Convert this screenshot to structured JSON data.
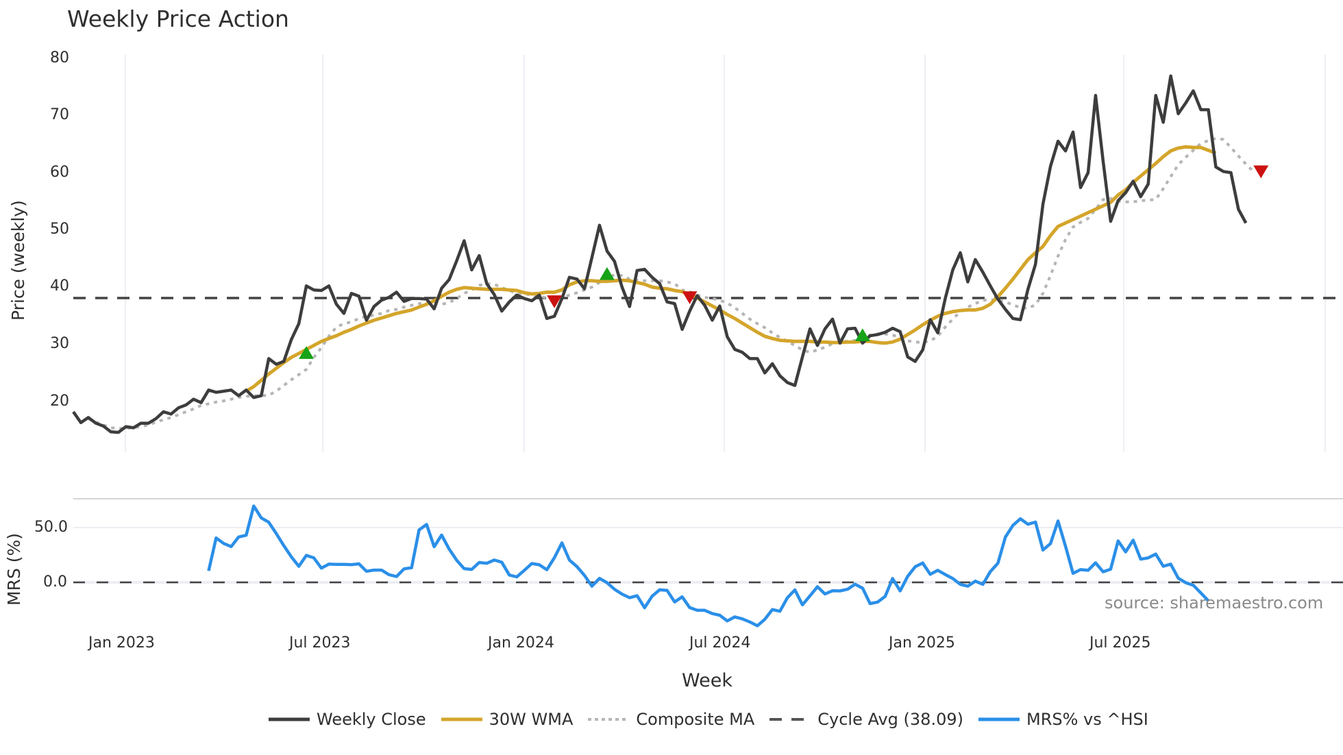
{
  "title": "Weekly Price Action",
  "source_note": "source: sharemaestro.com",
  "colors": {
    "weekly_close": "#3d3d3d",
    "wma": "#d4a52b",
    "composite_ma": "#b5b5b5",
    "cycle_avg": "#444444",
    "mrs": "#2b8fe8",
    "buy_marker": "#17a317",
    "sell_marker": "#cc1111",
    "grid": "#eceef3"
  },
  "legend": [
    {
      "label": "Weekly Close",
      "style": "solid",
      "color": "#3d3d3d"
    },
    {
      "label": "30W WMA",
      "style": "solid",
      "color": "#d4a52b"
    },
    {
      "label": "Composite MA",
      "style": "dotted",
      "color": "#b5b5b5"
    },
    {
      "label": "Cycle Avg (38.09)",
      "style": "dashed",
      "color": "#444444"
    },
    {
      "label": "MRS% vs ^HSI",
      "style": "solid",
      "color": "#2b8fe8"
    }
  ],
  "chart_data": [
    {
      "type": "line",
      "title": "Weekly Price Action",
      "xlabel": "Week",
      "ylabel": "Price (weekly)",
      "ylim": [
        12,
        80
      ],
      "yticks": [
        20,
        30,
        40,
        50,
        60,
        70,
        80
      ],
      "xticks": [
        "Jan 2023",
        "Jul 2023",
        "Jan 2024",
        "Jul 2024",
        "Jan 2025",
        "Jul 2025"
      ],
      "grid": true,
      "legend_position": "bottom",
      "x_start": "2022-12-05",
      "x_step": "1 week",
      "series": [
        {
          "name": "Weekly Close",
          "start_index": 0,
          "values": [
            18.2,
            16.3,
            17.2,
            16.2,
            15.7,
            14.7,
            14.6,
            15.6,
            15.4,
            16.2,
            16.2,
            17.0,
            18.2,
            17.8,
            18.9,
            19.4,
            20.4,
            19.8,
            22.0,
            21.6,
            21.8,
            22.0,
            21.0,
            22.0,
            20.7,
            21.0,
            27.5,
            26.5,
            27.0,
            30.8,
            33.6,
            40.2,
            39.5,
            39.4,
            40.2,
            37.0,
            35.4,
            38.9,
            38.4,
            34.2,
            36.6,
            37.7,
            38.2,
            39.1,
            37.5,
            38.0,
            38.0,
            37.9,
            36.2,
            39.8,
            41.3,
            44.6,
            48.1,
            43.0,
            45.5,
            40.6,
            38.7,
            35.8,
            37.4,
            38.6,
            38.0,
            37.6,
            38.6,
            34.5,
            34.9,
            38.0,
            41.7,
            41.4,
            39.7,
            45.2,
            50.8,
            46.3,
            44.5,
            40.0,
            36.6,
            42.9,
            43.1,
            41.7,
            40.6,
            37.4,
            37.1,
            32.6,
            35.8,
            38.5,
            36.8,
            34.2,
            36.7,
            31.3,
            29.1,
            28.6,
            27.5,
            27.5,
            25.0,
            26.6,
            24.5,
            23.3,
            22.8,
            27.8,
            32.7,
            29.8,
            32.7,
            34.4,
            30.2,
            32.7,
            32.8,
            30.2,
            31.5,
            31.7,
            32.1,
            32.8,
            32.2,
            27.8,
            27.0,
            29.0,
            34.3,
            32.0,
            38.0,
            43.0,
            46.0,
            40.9,
            44.8,
            42.6,
            40.2,
            37.9,
            36.1,
            34.5,
            34.3,
            39.6,
            44.0,
            54.5,
            61.1,
            65.5,
            63.8,
            67.1,
            57.4,
            60.0,
            73.5,
            62.0,
            51.5,
            55.1,
            56.5,
            58.5,
            55.8,
            58.0,
            73.5,
            68.8,
            76.9,
            70.3,
            72.2,
            74.3,
            71.0,
            71.0,
            61.0,
            60.2,
            60.0,
            53.6,
            51.2
          ]
        },
        {
          "name": "30W WMA",
          "start_index": 23,
          "values": [
            21.8,
            22.6,
            23.7,
            24.8,
            25.8,
            26.8,
            27.7,
            28.4,
            29.1,
            29.8,
            30.5,
            31.0,
            31.5,
            32.1,
            32.6,
            33.2,
            33.7,
            34.2,
            34.6,
            35.0,
            35.4,
            35.7,
            36.0,
            36.5,
            37.0,
            37.6,
            38.4,
            39.1,
            39.6,
            39.9,
            39.8,
            39.7,
            39.6,
            39.6,
            39.6,
            39.5,
            39.4,
            39.0,
            38.8,
            38.9,
            39.1,
            39.1,
            39.5,
            40.4,
            40.9,
            41.1,
            41.1,
            41.0,
            41.0,
            41.1,
            41.2,
            41.1,
            40.8,
            40.5,
            40.0,
            39.8,
            39.7,
            39.4,
            39.2,
            38.7,
            38.1,
            37.4,
            36.7,
            36.0,
            35.2,
            34.5,
            33.7,
            32.9,
            32.1,
            31.4,
            31.0,
            30.7,
            30.6,
            30.5,
            30.5,
            30.5,
            30.4,
            30.4,
            30.3,
            30.3,
            30.4,
            30.4,
            30.5,
            30.5,
            30.3,
            30.2,
            30.4,
            30.9,
            31.7,
            32.5,
            33.4,
            34.2,
            34.9,
            35.4,
            35.7,
            35.9,
            36.0,
            36.0,
            36.3,
            37.0,
            38.3,
            39.8,
            41.4,
            43.1,
            44.8,
            46.0,
            47.1,
            49.0,
            50.6,
            51.2,
            51.8,
            52.4,
            53.0,
            53.6,
            54.2,
            54.8,
            56.1,
            57.0,
            58.3,
            59.4,
            60.5,
            61.6,
            62.8,
            63.8,
            64.3,
            64.5,
            64.4,
            64.4,
            63.9,
            63.4
          ]
        },
        {
          "name": "Composite MA",
          "start_index": 2,
          "values": [
            17.0,
            16.4,
            15.9,
            15.4,
            15.3,
            15.3,
            15.4,
            15.6,
            15.9,
            16.4,
            16.8,
            17.2,
            17.7,
            18.2,
            18.7,
            19.3,
            19.6,
            19.9,
            20.1,
            20.4,
            20.7,
            20.9,
            21.0,
            21.0,
            21.1,
            21.8,
            22.8,
            23.8,
            24.7,
            25.6,
            27.7,
            29.4,
            31.4,
            33.0,
            33.6,
            33.9,
            34.5,
            34.9,
            35.1,
            35.4,
            35.9,
            36.1,
            36.5,
            36.8,
            37.1,
            37.2,
            37.2,
            37.0,
            37.3,
            38.0,
            38.9,
            39.5,
            40.3,
            40.6,
            40.5,
            39.9,
            39.4,
            38.9,
            38.8,
            38.6,
            38.4,
            38.1,
            38.0,
            38.1,
            38.6,
            39.0,
            39.5,
            40.0,
            40.8,
            41.8,
            42.1,
            42.0,
            41.4,
            41.2,
            41.1,
            41.1,
            41.1,
            40.9,
            40.6,
            39.5,
            39.2,
            38.6,
            38.2,
            38.0,
            37.7,
            37.2,
            36.4,
            35.4,
            34.4,
            33.6,
            32.9,
            32.0,
            31.2,
            30.5,
            29.8,
            29.0,
            28.6,
            29.0,
            29.5,
            30.1,
            30.5,
            30.5,
            30.7,
            31.1,
            31.6,
            31.8,
            31.8,
            31.6,
            31.2,
            30.6,
            30.4,
            30.3,
            30.6,
            31.4,
            33.0,
            34.4,
            35.7,
            36.5,
            37.1,
            37.7,
            37.8,
            37.7,
            37.4,
            36.9,
            36.4,
            36.3,
            36.9,
            38.9,
            42.0,
            45.4,
            48.3,
            50.5,
            51.3,
            52.0,
            53.6,
            55.3,
            55.5,
            55.0,
            54.9,
            54.9,
            55.1,
            55.2,
            55.3,
            57.2,
            59.3,
            61.4,
            62.7,
            63.9,
            65.1,
            65.6,
            66.0,
            65.8,
            64.4,
            62.9,
            61.5,
            60.2
          ]
        }
      ],
      "reference_lines": [
        {
          "name": "Cycle Avg (38.09)",
          "value": 38.09,
          "style": "dashed"
        }
      ],
      "markers": [
        {
          "type": "buy",
          "shape": "triangle-up",
          "index": 31,
          "value": 28.5
        },
        {
          "type": "sell",
          "shape": "triangle-down",
          "index": 64,
          "value": 37.5
        },
        {
          "type": "buy",
          "shape": "triangle-up",
          "index": 71,
          "value": 42.3
        },
        {
          "type": "sell",
          "shape": "triangle-down",
          "index": 82,
          "value": 38.2
        },
        {
          "type": "buy",
          "shape": "triangle-up",
          "index": 105,
          "value": 31.6
        },
        {
          "type": "sell",
          "shape": "triangle-down",
          "index": 158,
          "value": 60.2
        }
      ]
    },
    {
      "type": "line",
      "title": "",
      "xlabel": "Week",
      "ylabel": "MRS (%)",
      "ylim": [
        -42,
        77
      ],
      "yticks": [
        0.0,
        50.0
      ],
      "ytick_labels": [
        "0.0",
        "50.0"
      ],
      "grid": true,
      "reference_lines": [
        {
          "name": "zero",
          "value": 0.0,
          "style": "dashed"
        }
      ],
      "series": [
        {
          "name": "MRS% vs ^HSI",
          "start_index": 18,
          "values": [
            10.5,
            40.5,
            35.5,
            32.6,
            41.4,
            43.0,
            69.6,
            58.8,
            54.9,
            44.5,
            33.5,
            23.4,
            14.6,
            24.6,
            22.3,
            13.0,
            16.6,
            16.4,
            16.4,
            16.2,
            16.9,
            10.1,
            11.2,
            11.2,
            7.0,
            5.3,
            12.3,
            13.4,
            47.9,
            52.8,
            32.5,
            43.1,
            30.4,
            20.2,
            12.5,
            11.8,
            18.1,
            17.4,
            20.4,
            18.4,
            6.7,
            5.0,
            11.0,
            17.2,
            16.0,
            11.5,
            22.5,
            36.0,
            20.4,
            14.4,
            6.3,
            -3.5,
            3.6,
            -0.3,
            -6.3,
            -10.7,
            -14.0,
            -12.2,
            -23.2,
            -12.6,
            -6.8,
            -7.4,
            -17.9,
            -13.2,
            -23.0,
            -25.5,
            -25.5,
            -28.5,
            -30.0,
            -35.2,
            -31.5,
            -33.3,
            -36.1,
            -39.6,
            -33.7,
            -24.8,
            -26.4,
            -14.0,
            -6.9,
            -20.5,
            -12.3,
            -4.0,
            -10.6,
            -7.6,
            -7.8,
            -6.3,
            -1.7,
            -5.3,
            -19.4,
            -18.0,
            -12.8,
            3.5,
            -7.8,
            5.5,
            14.2,
            17.7,
            7.3,
            11.0,
            7.1,
            3.5,
            -1.8,
            -3.5,
            1.1,
            -1.8,
            9.8,
            17.4,
            41.3,
            52.0,
            58.0,
            53.0,
            55.0,
            29.5,
            35.4,
            56.0,
            33.0,
            8.2,
            11.6,
            11.0,
            17.8,
            9.6,
            12.0,
            37.8,
            27.8,
            38.5,
            21.2,
            22.3,
            25.8,
            14.7,
            16.6,
            3.8,
            -0.4,
            -2.6,
            -9.6,
            -16.8
          ]
        }
      ]
    }
  ],
  "axes": {
    "price_ylabel": "Price (weekly)",
    "mrs_ylabel": "MRS (%)",
    "xlabel": "Week",
    "price_yticks": [
      "80",
      "70",
      "60",
      "50",
      "40",
      "30",
      "20"
    ],
    "mrs_yticks": [
      "50.0",
      "0.0"
    ],
    "xticks": [
      "Jan 2023",
      "Jul 2023",
      "Jan 2024",
      "Jul 2024",
      "Jan 2025",
      "Jul 2025"
    ]
  }
}
